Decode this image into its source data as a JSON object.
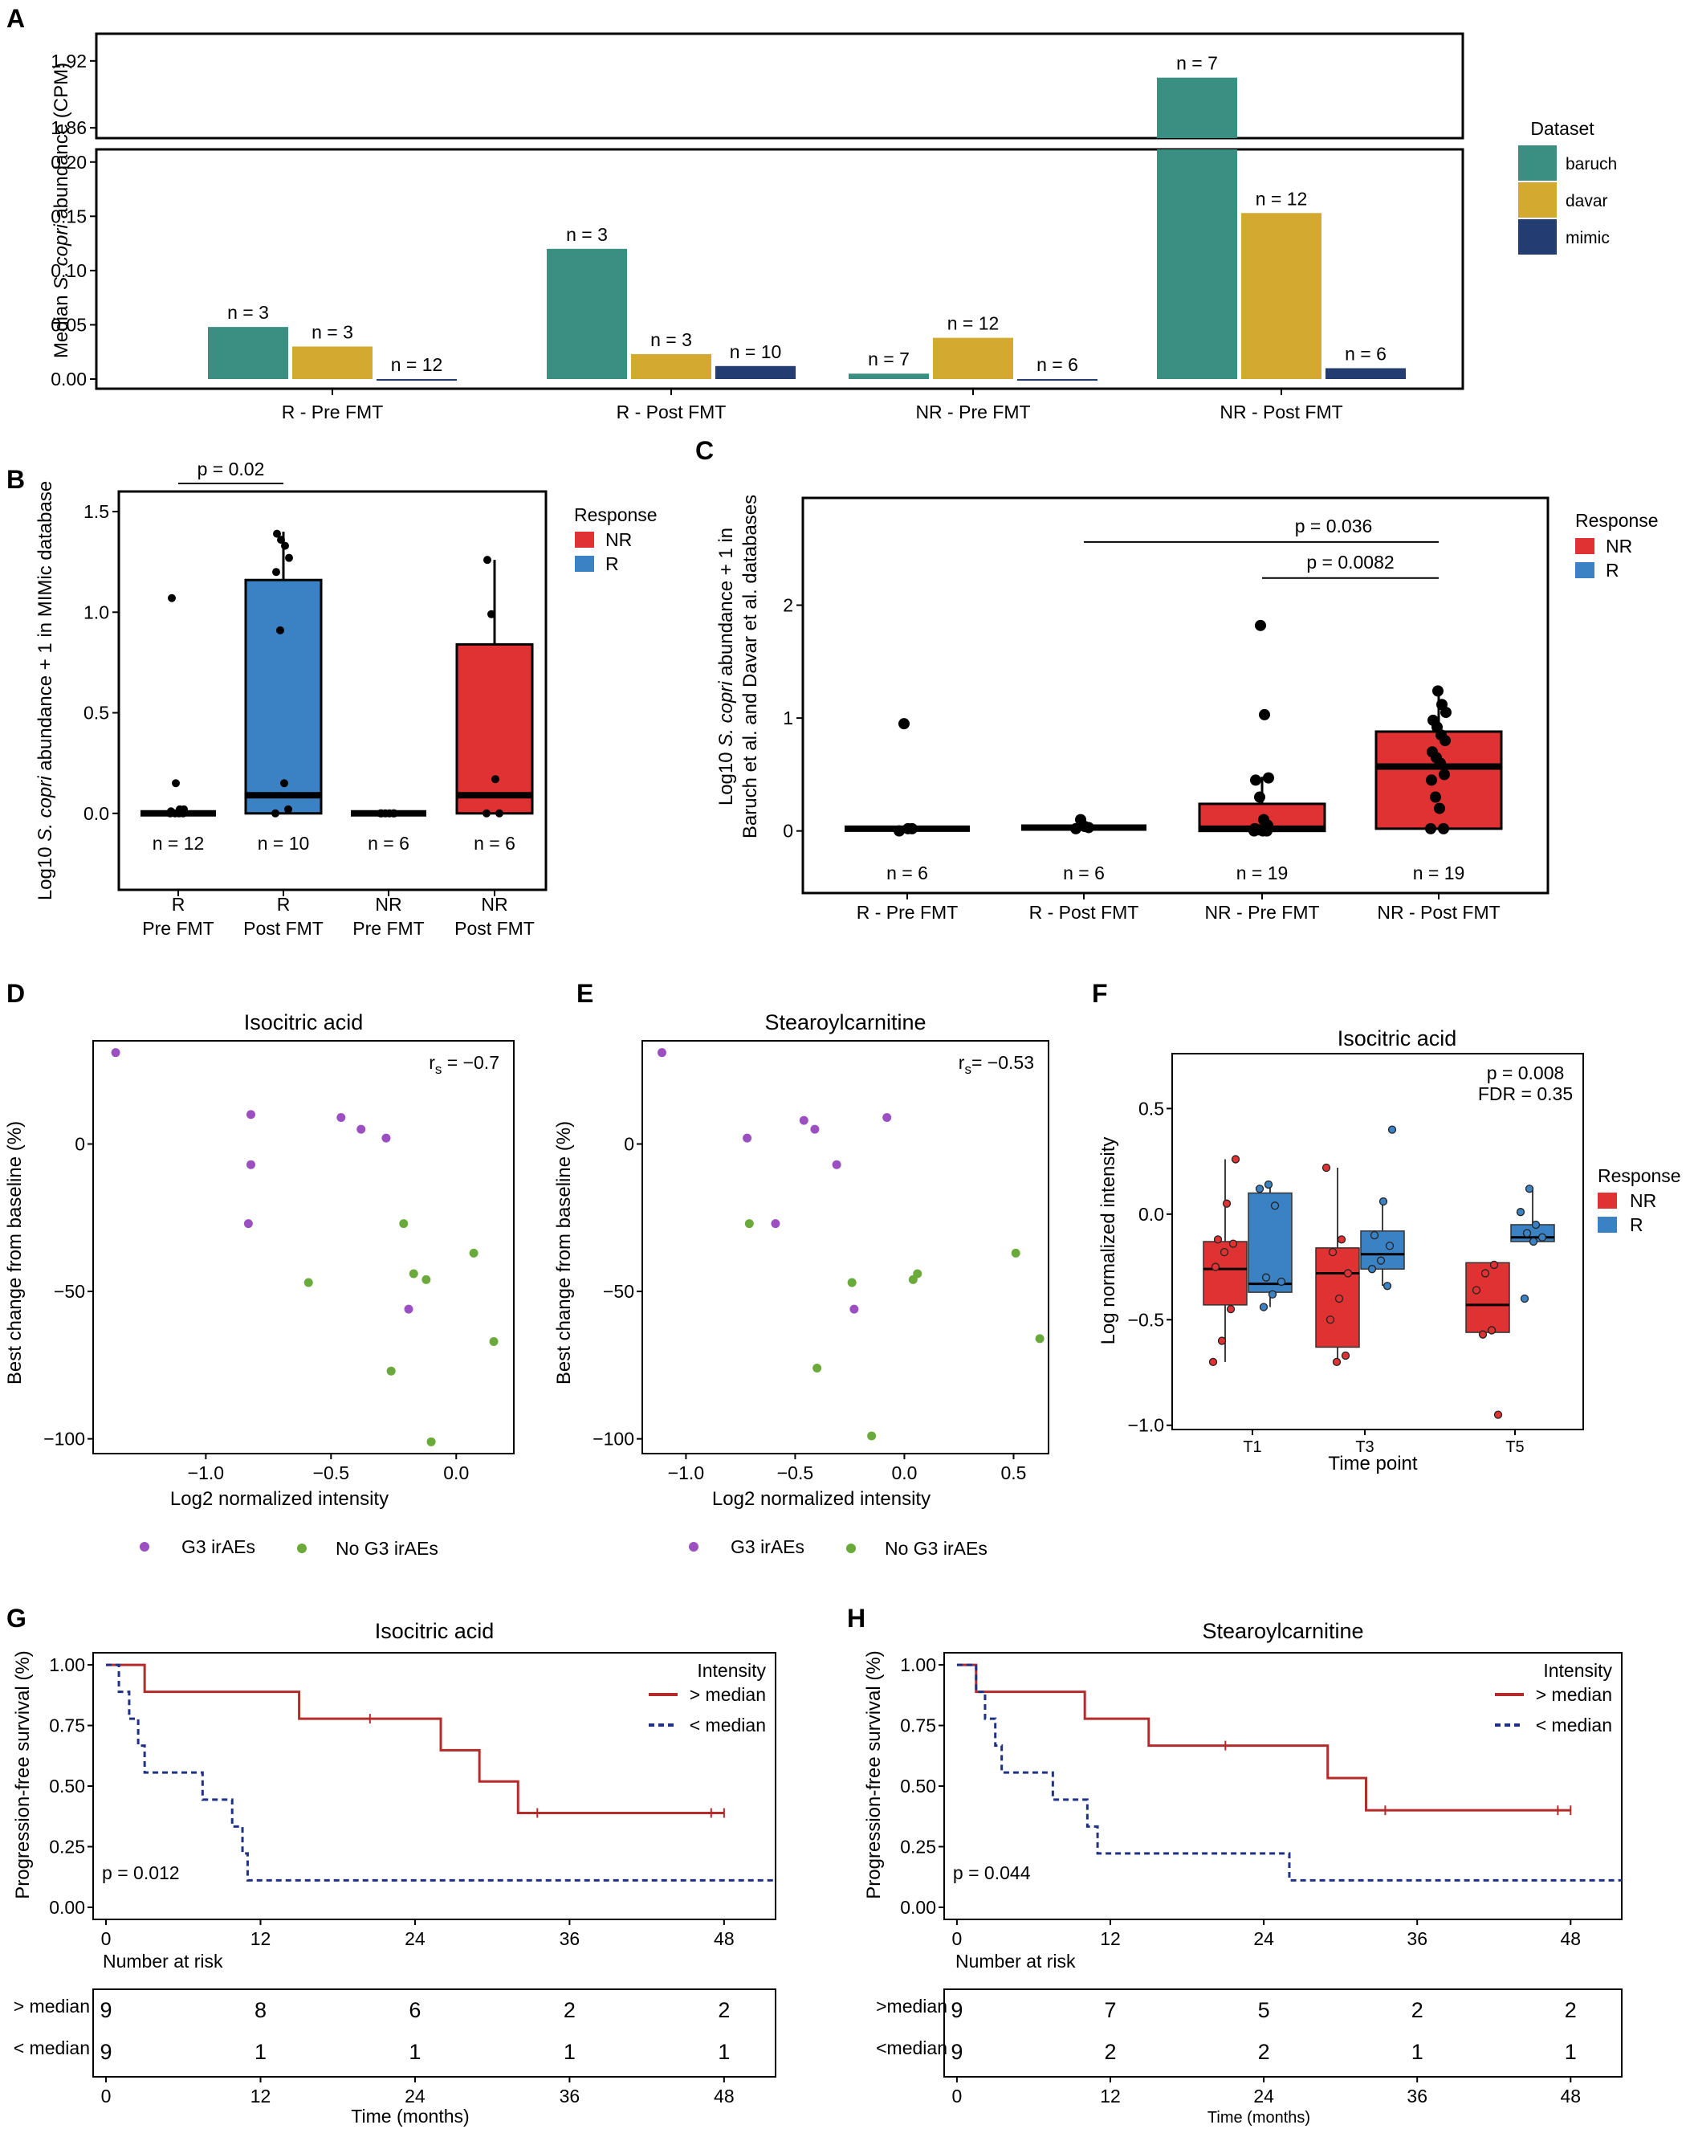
{
  "colors": {
    "baruch": "#3b8f82",
    "davar": "#d4a92f",
    "mimic": "#233d73",
    "NR": "#e03232",
    "R": "#3b82c4",
    "G3": "#9b4fc0",
    "NoG3": "#6aaa3a",
    "above": "#b52a2a",
    "below": "#1f3187"
  },
  "chart_data": [
    {
      "panel": "A",
      "type": "bar",
      "ylabel": "Median S. copri abundance (CPM)",
      "ylabel_parts": [
        "Median ",
        "S. copri",
        " abundance (CPM)"
      ],
      "categories": [
        "R - Pre FMT",
        "R - Post FMT",
        "NR - Pre FMT",
        "NR - Post FMT"
      ],
      "series": [
        {
          "name": "baruch",
          "values": [
            0.048,
            0.12,
            0.005,
            1.905
          ],
          "n_labels": [
            "n = 3",
            "n = 3",
            "n = 7",
            "n = 7"
          ]
        },
        {
          "name": "davar",
          "values": [
            0.03,
            0.023,
            0.038,
            0.153
          ],
          "n_labels": [
            "n = 3",
            "n = 3",
            "n = 12",
            "n = 12"
          ]
        },
        {
          "name": "mimic",
          "values": [
            0.0,
            0.012,
            0.0,
            0.01
          ],
          "n_labels": [
            "n = 12",
            "n = 10",
            "n = 6",
            "n = 6"
          ]
        }
      ],
      "yticks_lower": [
        "0.00",
        "0.05",
        "0.10",
        "0.15",
        "0.20"
      ],
      "yticks_upper": [
        "1.86",
        "1.92"
      ],
      "ylim_lower": [
        0,
        0.205
      ],
      "ylim_upper": [
        1.845,
        1.935
      ],
      "legend_title": "Dataset",
      "legend": [
        "baruch",
        "davar",
        "mimic"
      ]
    },
    {
      "panel": "B",
      "type": "box",
      "ylabel_parts": [
        "Log10 ",
        "S. copri",
        " abundance + 1 in MIMic database"
      ],
      "ylim": [
        -0.38,
        1.6
      ],
      "yticks": [
        "0.0",
        "0.5",
        "1.0",
        "1.5"
      ],
      "groups": [
        {
          "label": [
            "R",
            "Pre FMT"
          ],
          "response": "R",
          "fill": false,
          "n": "n = 12",
          "q1": 0.0,
          "median": 0.0,
          "q3": 0.0,
          "whisker_hi": 0.0,
          "points": [
            0,
            0,
            0,
            0,
            0.01,
            0.02,
            0.02,
            0.15,
            1.07
          ]
        },
        {
          "label": [
            "R",
            "Post FMT"
          ],
          "response": "R",
          "fill": true,
          "n": "n = 10",
          "q1": 0.0,
          "median": 0.09,
          "q3": 1.16,
          "whisker_hi": 1.4,
          "points": [
            0.0,
            0.02,
            0.15,
            0.91,
            1.2,
            1.27,
            1.33,
            1.36,
            1.39
          ]
        },
        {
          "label": [
            "NR",
            "Pre FMT"
          ],
          "response": "NR",
          "fill": false,
          "n": "n = 6",
          "q1": 0.0,
          "median": 0.0,
          "q3": 0.0,
          "whisker_hi": 0.0,
          "points": [
            0,
            0,
            0,
            0,
            0,
            0
          ]
        },
        {
          "label": [
            "NR",
            "Post FMT"
          ],
          "response": "NR",
          "fill": true,
          "n": "n = 6",
          "q1": 0.0,
          "median": 0.09,
          "q3": 0.84,
          "whisker_hi": 1.26,
          "points": [
            0.0,
            0.0,
            0.17,
            0.99,
            1.26
          ]
        }
      ],
      "bracket": {
        "from": 0,
        "to": 1,
        "y": 1.64,
        "label": "p = 0.02"
      },
      "legend_title": "Response",
      "legend": [
        "NR",
        "R"
      ]
    },
    {
      "panel": "C",
      "type": "box",
      "ylabel_line1_parts": [
        "Log10 ",
        "S. copri",
        " abundance + 1 in"
      ],
      "ylabel_line2": "Baruch et al. and Davar et al. databases",
      "ylim": [
        -0.55,
        2.95
      ],
      "yticks": [
        "0",
        "1",
        "2"
      ],
      "groups": [
        {
          "label": "R - Pre FMT",
          "response": "R",
          "fill": false,
          "n": "n = 6",
          "q1": 0.0,
          "median": 0.02,
          "q3": 0.02,
          "whisker_hi": 0.02,
          "points": [
            0.0,
            0.02,
            0.02,
            0.95
          ]
        },
        {
          "label": "R - Post FMT",
          "response": "R",
          "fill": false,
          "n": "n = 6",
          "q1": 0.02,
          "median": 0.03,
          "q3": 0.04,
          "whisker_hi": 0.04,
          "points": [
            0.02,
            0.03,
            0.04,
            0.1
          ]
        },
        {
          "label": "NR - Pre FMT",
          "response": "NR",
          "fill": true,
          "n": "n = 19",
          "q1": 0.0,
          "median": 0.02,
          "q3": 0.24,
          "whisker_hi": 0.48,
          "points": [
            0,
            0,
            0,
            0.01,
            0.02,
            0.05,
            0.1,
            0.3,
            0.45,
            0.47,
            1.03,
            1.82
          ]
        },
        {
          "label": "NR - Post FMT",
          "response": "NR",
          "fill": true,
          "n": "n = 19",
          "q1": 0.02,
          "median": 0.57,
          "q3": 0.88,
          "whisker_hi": 1.24,
          "points": [
            0.02,
            0.02,
            0.2,
            0.3,
            0.45,
            0.5,
            0.6,
            0.65,
            0.7,
            0.8,
            0.85,
            0.92,
            0.98,
            1.05,
            1.12,
            1.24
          ]
        }
      ],
      "brackets": [
        {
          "from": 1,
          "to": 3,
          "y": 2.56,
          "label": "p = 0.036"
        },
        {
          "from": 2,
          "to": 3,
          "y": 2.24,
          "label": "p = 0.0082"
        }
      ],
      "legend_title": "Response",
      "legend": [
        "NR",
        "R"
      ]
    },
    {
      "panel": "D",
      "type": "scatter",
      "title": "Isocitric acid",
      "xlabel": "Log2 normalized intensity",
      "ylabel": "Best change from baseline (%)",
      "xlim": [
        -1.45,
        0.23
      ],
      "ylim": [
        -105,
        35
      ],
      "xticks": [
        -1.0,
        -0.5,
        0.0
      ],
      "xtick_labels": [
        "−1.0",
        "−0.5",
        "0.0"
      ],
      "yticks": [
        -100,
        -50,
        0
      ],
      "ytick_labels": [
        "−100",
        "−50",
        "0"
      ],
      "stat": {
        "prefix": "r",
        "sub": "s",
        "value": " = −0.7"
      },
      "points_G3": [
        [
          -1.36,
          31
        ],
        [
          -0.82,
          10
        ],
        [
          -0.82,
          -7
        ],
        [
          -0.83,
          -27
        ],
        [
          -0.46,
          9
        ],
        [
          -0.38,
          5
        ],
        [
          -0.28,
          2
        ],
        [
          -0.19,
          -56
        ]
      ],
      "points_NoG3": [
        [
          -0.59,
          -47
        ],
        [
          -0.21,
          -27
        ],
        [
          -0.17,
          -44
        ],
        [
          -0.12,
          -46
        ],
        [
          0.07,
          -37
        ],
        [
          -0.26,
          -77
        ],
        [
          -0.1,
          -101
        ],
        [
          0.15,
          -67
        ]
      ],
      "legend": [
        "G3 irAEs",
        "No G3 irAEs"
      ]
    },
    {
      "panel": "E",
      "type": "scatter",
      "title": "Stearoylcarnitine",
      "xlabel": "Log2 normalized intensity",
      "ylabel": "Best change from baseline (%)",
      "xlim": [
        -1.2,
        0.66
      ],
      "ylim": [
        -105,
        35
      ],
      "xticks": [
        -1.0,
        -0.5,
        0.0,
        0.5
      ],
      "xtick_labels": [
        "−1.0",
        "−0.5",
        "0.0",
        "0.5"
      ],
      "yticks": [
        -100,
        -50,
        0
      ],
      "ytick_labels": [
        "−100",
        "−50",
        "0"
      ],
      "stat": {
        "prefix": "r",
        "sub": "s",
        "value": "= −0.53"
      },
      "points_G3": [
        [
          -1.11,
          31
        ],
        [
          -0.72,
          2
        ],
        [
          -0.46,
          8
        ],
        [
          -0.41,
          5
        ],
        [
          -0.31,
          -7
        ],
        [
          -0.59,
          -27
        ],
        [
          -0.23,
          -56
        ],
        [
          -0.08,
          9
        ]
      ],
      "points_NoG3": [
        [
          -0.71,
          -27
        ],
        [
          -0.24,
          -47
        ],
        [
          0.04,
          -46
        ],
        [
          0.06,
          -44
        ],
        [
          0.51,
          -37
        ],
        [
          -0.4,
          -76
        ],
        [
          -0.15,
          -99
        ],
        [
          0.62,
          -66
        ]
      ],
      "legend": [
        "G3 irAEs",
        "No G3 irAEs"
      ]
    },
    {
      "panel": "F",
      "type": "box",
      "title": "Isocitric acid",
      "xlabel": "Time point",
      "ylabel": "Log normalized  intensity",
      "ylim": [
        -1.02,
        0.76
      ],
      "yticks": [
        0.5,
        0.0,
        -0.5,
        -1.0
      ],
      "ytick_labels": [
        "0.5",
        "0.0",
        "−0.5",
        "−1.0"
      ],
      "categories": [
        "T1",
        "T3",
        "T5"
      ],
      "stats": [
        "p = 0.008",
        "FDR = 0.35"
      ],
      "boxes": [
        {
          "group": "T1",
          "response": "NR",
          "q1": -0.43,
          "median": -0.26,
          "q3": -0.13,
          "lo": -0.7,
          "hi": 0.26,
          "points": [
            -0.7,
            -0.6,
            -0.45,
            -0.25,
            -0.18,
            -0.14,
            -0.12,
            0.05,
            0.26
          ]
        },
        {
          "group": "T1",
          "response": "R",
          "q1": -0.37,
          "median": -0.33,
          "q3": 0.1,
          "lo": -0.44,
          "hi": 0.14,
          "points": [
            -0.44,
            -0.38,
            -0.32,
            -0.3,
            0.04,
            0.12,
            0.14
          ]
        },
        {
          "group": "T3",
          "response": "NR",
          "q1": -0.63,
          "median": -0.28,
          "q3": -0.16,
          "lo": -0.7,
          "hi": 0.22,
          "points": [
            -0.7,
            -0.67,
            -0.5,
            -0.4,
            -0.28,
            -0.18,
            -0.12,
            0.22
          ]
        },
        {
          "group": "T3",
          "response": "R",
          "q1": -0.26,
          "median": -0.19,
          "q3": -0.08,
          "lo": -0.34,
          "hi": 0.06,
          "points": [
            -0.34,
            -0.26,
            -0.22,
            -0.15,
            -0.1,
            0.06,
            0.4
          ]
        },
        {
          "group": "T5",
          "response": "NR",
          "q1": -0.56,
          "median": -0.43,
          "q3": -0.23,
          "lo": -0.56,
          "hi": -0.23,
          "points": [
            -0.95,
            -0.57,
            -0.55,
            -0.36,
            -0.28,
            -0.24
          ]
        },
        {
          "group": "T5",
          "response": "R",
          "q1": -0.13,
          "median": -0.11,
          "q3": -0.05,
          "lo": -0.13,
          "hi": 0.12,
          "points": [
            -0.4,
            -0.13,
            -0.11,
            -0.09,
            -0.05,
            0.01,
            0.12
          ]
        }
      ],
      "legend_title": "Response",
      "legend": [
        "NR",
        "R"
      ]
    },
    {
      "panel": "G",
      "type": "line",
      "title": "Isocitric acid",
      "xlabel": "Time (months)",
      "ylabel": "Progression-free survival (%)",
      "xlim": [
        -1,
        52
      ],
      "ylim": [
        -0.05,
        1.05
      ],
      "xticks": [
        0,
        12,
        24,
        36,
        48
      ],
      "yticks": [
        "0.00",
        "0.25",
        "0.50",
        "0.75",
        "1.00"
      ],
      "pvalue": "p = 0.012",
      "legend_title": "Intensity",
      "legend": [
        "> median",
        "< median"
      ],
      "series": [
        {
          "name": "> median",
          "steps": [
            [
              0,
              1.0
            ],
            [
              3,
              0.889
            ],
            [
              15,
              0.778
            ],
            [
              26,
              0.648
            ],
            [
              29,
              0.519
            ],
            [
              32,
              0.389
            ],
            [
              48,
              0.389
            ]
          ],
          "censor": [
            [
              20.5,
              0.778
            ],
            [
              33.5,
              0.389
            ],
            [
              47,
              0.389
            ],
            [
              48,
              0.389
            ]
          ]
        },
        {
          "name": "< median",
          "steps": [
            [
              0,
              1.0
            ],
            [
              1,
              0.889
            ],
            [
              1.8,
              0.778
            ],
            [
              2.5,
              0.667
            ],
            [
              3,
              0.556
            ],
            [
              7.5,
              0.444
            ],
            [
              9.8,
              0.333
            ],
            [
              10.6,
              0.222
            ],
            [
              11,
              0.111
            ],
            [
              52,
              0.111
            ]
          ],
          "censor": []
        }
      ],
      "risk_title": "Number at risk",
      "risk_rows": [
        {
          "label": "> median",
          "values": [
            "9",
            "8",
            "6",
            "2",
            "2"
          ]
        },
        {
          "label": "< median",
          "values": [
            "9",
            "1",
            "1",
            "1",
            "1"
          ]
        }
      ],
      "risk_xticks": [
        "0",
        "12",
        "24",
        "36",
        "48"
      ]
    },
    {
      "panel": "H",
      "type": "line",
      "title": "Stearoylcarnitine",
      "xlabel": "Time (months)",
      "ylabel": "Progression-free survival (%)",
      "xlim": [
        -1,
        52
      ],
      "ylim": [
        -0.05,
        1.05
      ],
      "xticks": [
        0,
        12,
        24,
        36,
        48
      ],
      "yticks": [
        "0.00",
        "0.25",
        "0.50",
        "0.75",
        "1.00"
      ],
      "pvalue": "p = 0.044",
      "legend_title": "Intensity",
      "legend": [
        "> median",
        "< median"
      ],
      "series": [
        {
          "name": "> median",
          "steps": [
            [
              0,
              1.0
            ],
            [
              1.5,
              0.889
            ],
            [
              10,
              0.778
            ],
            [
              15,
              0.667
            ],
            [
              29,
              0.533
            ],
            [
              32,
              0.4
            ],
            [
              48,
              0.4
            ]
          ],
          "censor": [
            [
              21,
              0.667
            ],
            [
              33.5,
              0.4
            ],
            [
              47,
              0.4
            ],
            [
              48,
              0.4
            ]
          ]
        },
        {
          "name": "< median",
          "steps": [
            [
              0,
              1.0
            ],
            [
              1.5,
              0.889
            ],
            [
              2.2,
              0.778
            ],
            [
              3,
              0.667
            ],
            [
              3.5,
              0.556
            ],
            [
              7.5,
              0.444
            ],
            [
              10.2,
              0.333
            ],
            [
              11,
              0.222
            ],
            [
              26,
              0.111
            ],
            [
              52,
              0.111
            ]
          ],
          "censor": []
        }
      ],
      "risk_title": "Number at risk",
      "risk_rows": [
        {
          "label": ">median",
          "values": [
            "9",
            "7",
            "5",
            "2",
            "2"
          ]
        },
        {
          "label": "<median",
          "values": [
            "9",
            "2",
            "2",
            "1",
            "1"
          ]
        }
      ],
      "risk_xticks": [
        "0",
        "12",
        "24",
        "36",
        "48"
      ]
    }
  ]
}
